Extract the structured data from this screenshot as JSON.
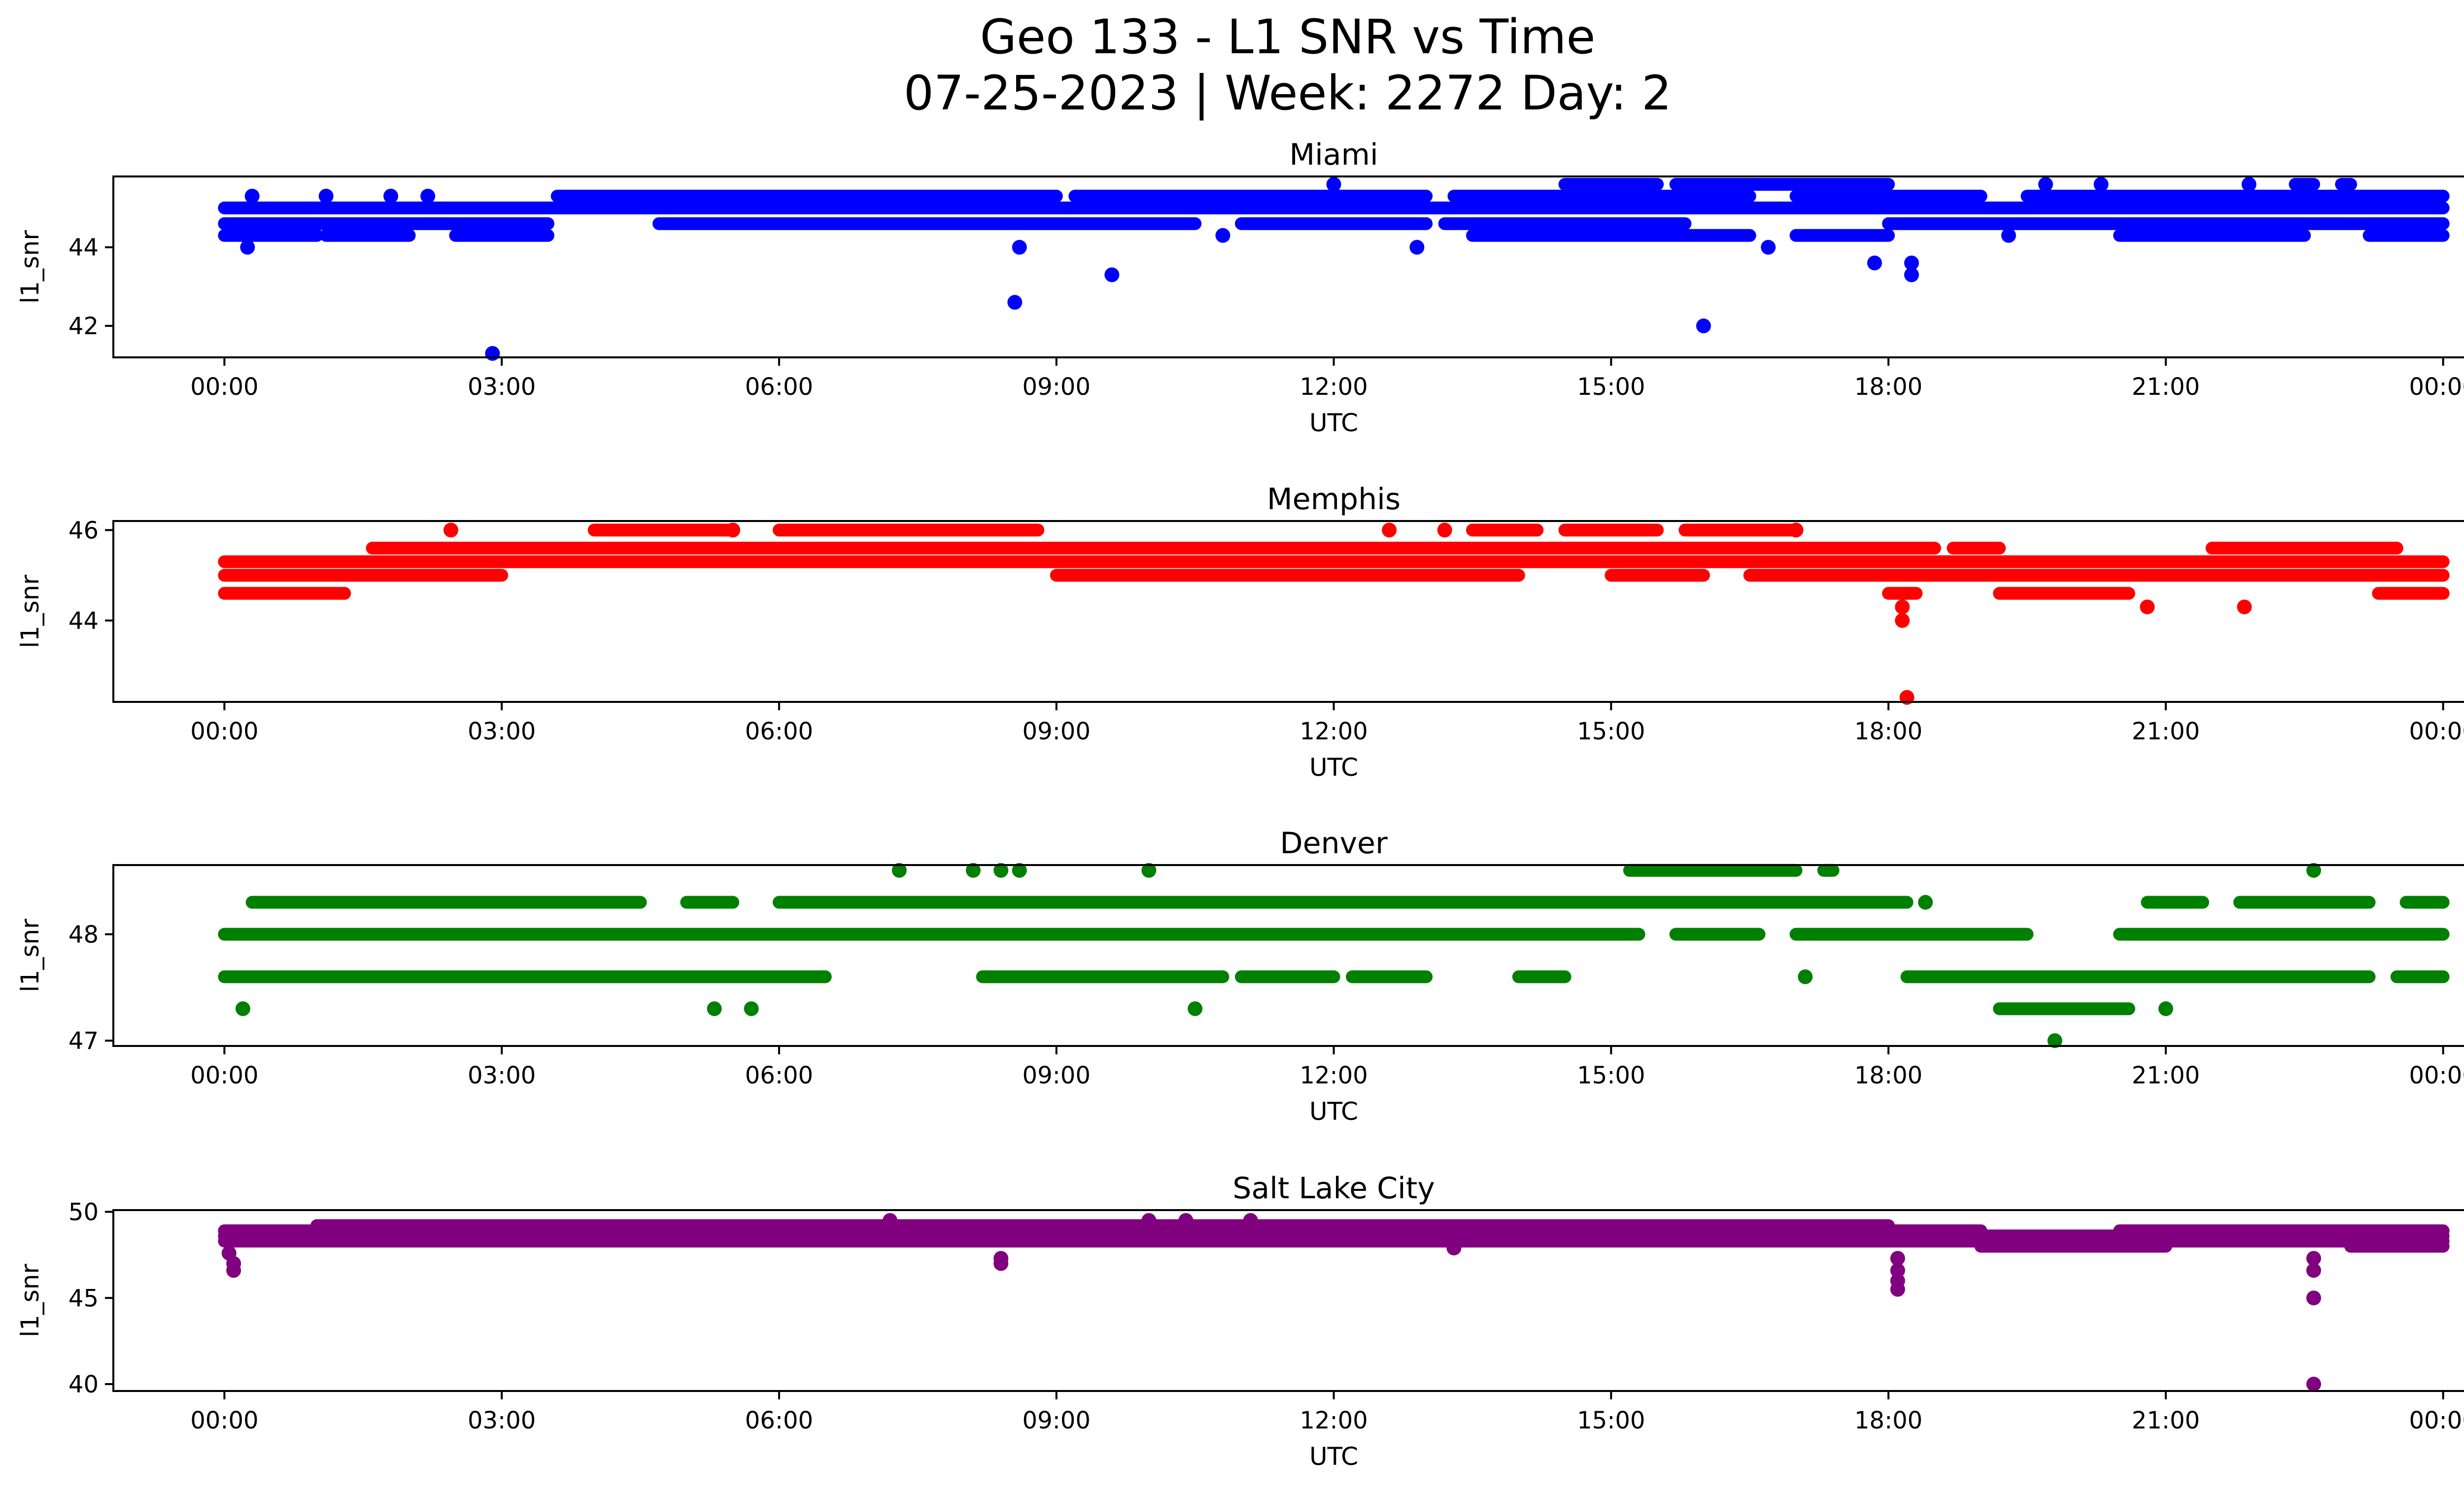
{
  "figure": {
    "title_line1": "Geo 133 - L1 SNR vs Time",
    "title_line2": "07-25-2023 | Week: 2272 Day: 2"
  },
  "chart_data": [
    {
      "type": "scatter",
      "title": "Miami",
      "xlabel": "UTC",
      "ylabel": "l1_snr",
      "color": "#0000ff",
      "xlim": [
        "00:00",
        "24:00"
      ],
      "xticks": [
        "00:00",
        "03:00",
        "06:00",
        "09:00",
        "12:00",
        "15:00",
        "18:00",
        "21:00",
        "00:00"
      ],
      "ylim": [
        41.2,
        45.8
      ],
      "yticks": [
        42,
        44
      ],
      "bands": [
        {
          "y": 44.3,
          "segments": [
            [
              0.0,
              1.0
            ],
            [
              1.1,
              2.0
            ],
            [
              2.5,
              3.5
            ],
            [
              13.5,
              16.5
            ],
            [
              17.0,
              18.0
            ],
            [
              20.5,
              22.5
            ],
            [
              23.2,
              24.0
            ]
          ]
        },
        {
          "y": 44.6,
          "segments": [
            [
              0.0,
              3.5
            ],
            [
              4.7,
              10.5
            ],
            [
              11.0,
              13.0
            ],
            [
              13.2,
              15.8
            ],
            [
              18.0,
              24.0
            ]
          ]
        },
        {
          "y": 45.0,
          "segments": [
            [
              0.0,
              24.0
            ]
          ]
        },
        {
          "y": 45.3,
          "segments": [
            [
              3.6,
              9.0
            ],
            [
              9.2,
              13.0
            ],
            [
              13.3,
              16.5
            ],
            [
              17.0,
              19.0
            ],
            [
              19.5,
              24.0
            ]
          ]
        },
        {
          "y": 45.6,
          "segments": [
            [
              14.5,
              15.5
            ],
            [
              15.7,
              18.0
            ],
            [
              22.4,
              22.6
            ],
            [
              22.9,
              23.0
            ]
          ]
        }
      ],
      "points": [
        {
          "x": 0.25,
          "y": 44.0
        },
        {
          "x": 0.3,
          "y": 45.3
        },
        {
          "x": 1.1,
          "y": 45.3
        },
        {
          "x": 1.8,
          "y": 45.3
        },
        {
          "x": 2.2,
          "y": 45.3
        },
        {
          "x": 2.9,
          "y": 41.3
        },
        {
          "x": 8.55,
          "y": 42.6
        },
        {
          "x": 8.6,
          "y": 44.0
        },
        {
          "x": 9.6,
          "y": 43.3
        },
        {
          "x": 10.8,
          "y": 44.3
        },
        {
          "x": 12.0,
          "y": 45.6
        },
        {
          "x": 12.9,
          "y": 44.0
        },
        {
          "x": 16.0,
          "y": 42.0
        },
        {
          "x": 16.7,
          "y": 44.0
        },
        {
          "x": 17.85,
          "y": 43.6
        },
        {
          "x": 18.25,
          "y": 43.6
        },
        {
          "x": 18.25,
          "y": 43.3
        },
        {
          "x": 19.3,
          "y": 44.3
        },
        {
          "x": 19.7,
          "y": 45.6
        },
        {
          "x": 20.3,
          "y": 45.6
        },
        {
          "x": 21.9,
          "y": 45.6
        }
      ]
    },
    {
      "type": "scatter",
      "title": "Memphis",
      "xlabel": "UTC",
      "ylabel": "l1_snr",
      "color": "#ff0000",
      "xlim": [
        "00:00",
        "24:00"
      ],
      "xticks": [
        "00:00",
        "03:00",
        "06:00",
        "09:00",
        "12:00",
        "15:00",
        "18:00",
        "21:00",
        "00:00"
      ],
      "ylim": [
        42.2,
        46.2
      ],
      "yticks": [
        44,
        46
      ],
      "bands": [
        {
          "y": 44.6,
          "segments": [
            [
              0.0,
              1.3
            ],
            [
              18.0,
              18.3
            ],
            [
              19.2,
              20.6
            ],
            [
              23.3,
              24.0
            ]
          ]
        },
        {
          "y": 45.0,
          "segments": [
            [
              0.0,
              3.0
            ],
            [
              9.0,
              14.0
            ],
            [
              15.0,
              16.0
            ],
            [
              16.5,
              24.0
            ]
          ]
        },
        {
          "y": 45.3,
          "segments": [
            [
              0.0,
              24.0
            ]
          ]
        },
        {
          "y": 45.6,
          "segments": [
            [
              1.6,
              18.5
            ],
            [
              18.7,
              19.2
            ],
            [
              21.5,
              23.5
            ]
          ]
        },
        {
          "y": 46.0,
          "segments": [
            [
              4.0,
              5.5
            ],
            [
              6.0,
              8.8
            ],
            [
              13.5,
              14.2
            ],
            [
              14.5,
              15.5
            ],
            [
              15.8,
              17.0
            ]
          ]
        }
      ],
      "points": [
        {
          "x": 2.45,
          "y": 46.0
        },
        {
          "x": 5.5,
          "y": 46.0
        },
        {
          "x": 12.6,
          "y": 46.0
        },
        {
          "x": 13.2,
          "y": 46.0
        },
        {
          "x": 17.0,
          "y": 46.0
        },
        {
          "x": 18.15,
          "y": 44.3
        },
        {
          "x": 18.15,
          "y": 44.0
        },
        {
          "x": 18.2,
          "y": 42.3
        },
        {
          "x": 20.8,
          "y": 44.3
        },
        {
          "x": 21.85,
          "y": 44.3
        }
      ]
    },
    {
      "type": "scatter",
      "title": "Denver",
      "xlabel": "UTC",
      "ylabel": "l1_snr",
      "color": "#008000",
      "xlim": [
        "00:00",
        "24:00"
      ],
      "xticks": [
        "00:00",
        "03:00",
        "06:00",
        "09:00",
        "12:00",
        "15:00",
        "18:00",
        "21:00",
        "00:00"
      ],
      "ylim": [
        46.95,
        48.65
      ],
      "yticks": [
        47,
        48
      ],
      "bands": [
        {
          "y": 47.3,
          "segments": [
            [
              19.2,
              20.6
            ]
          ]
        },
        {
          "y": 47.6,
          "segments": [
            [
              0.0,
              6.5
            ],
            [
              8.2,
              10.8
            ],
            [
              11.0,
              12.0
            ],
            [
              12.2,
              13.0
            ],
            [
              14.0,
              14.5
            ],
            [
              18.2,
              23.2
            ],
            [
              23.5,
              24.0
            ]
          ]
        },
        {
          "y": 48.0,
          "segments": [
            [
              0.0,
              15.3
            ],
            [
              15.7,
              16.6
            ],
            [
              17.0,
              19.5
            ],
            [
              20.5,
              24.0
            ]
          ]
        },
        {
          "y": 48.3,
          "segments": [
            [
              0.3,
              4.5
            ],
            [
              5.0,
              5.5
            ],
            [
              6.0,
              18.2
            ],
            [
              20.8,
              21.4
            ],
            [
              21.8,
              23.2
            ],
            [
              23.6,
              24.0
            ]
          ]
        },
        {
          "y": 48.6,
          "segments": [
            [
              15.2,
              17.0
            ],
            [
              17.3,
              17.4
            ]
          ]
        }
      ],
      "points": [
        {
          "x": 0.2,
          "y": 47.3
        },
        {
          "x": 5.3,
          "y": 47.3
        },
        {
          "x": 5.7,
          "y": 47.3
        },
        {
          "x": 7.3,
          "y": 48.6
        },
        {
          "x": 8.1,
          "y": 48.6
        },
        {
          "x": 8.4,
          "y": 48.6
        },
        {
          "x": 8.6,
          "y": 48.6
        },
        {
          "x": 10.0,
          "y": 48.6
        },
        {
          "x": 10.5,
          "y": 47.3
        },
        {
          "x": 17.1,
          "y": 47.6
        },
        {
          "x": 18.4,
          "y": 48.3
        },
        {
          "x": 19.8,
          "y": 47.0
        },
        {
          "x": 21.0,
          "y": 47.3
        },
        {
          "x": 22.6,
          "y": 48.6
        }
      ]
    },
    {
      "type": "scatter",
      "title": "Salt Lake City",
      "xlabel": "UTC",
      "ylabel": "l1_snr",
      "color": "#800080",
      "xlim": [
        "00:00",
        "24:00"
      ],
      "xticks": [
        "00:00",
        "03:00",
        "06:00",
        "09:00",
        "12:00",
        "15:00",
        "18:00",
        "21:00",
        "00:00"
      ],
      "ylim": [
        39.6,
        50.1
      ],
      "yticks": [
        40,
        45,
        50
      ],
      "bands": [
        {
          "y": 48.0,
          "segments": [
            [
              19.0,
              21.0
            ],
            [
              23.0,
              24.0
            ]
          ]
        },
        {
          "y": 48.3,
          "segments": [
            [
              0.0,
              24.0
            ]
          ]
        },
        {
          "y": 48.6,
          "segments": [
            [
              0.0,
              24.0
            ]
          ]
        },
        {
          "y": 48.9,
          "segments": [
            [
              0.0,
              19.0
            ],
            [
              20.5,
              24.0
            ]
          ]
        },
        {
          "y": 49.2,
          "segments": [
            [
              1.0,
              18.0
            ]
          ]
        }
      ],
      "points": [
        {
          "x": 0.05,
          "y": 47.6
        },
        {
          "x": 0.1,
          "y": 47.0
        },
        {
          "x": 0.1,
          "y": 46.6
        },
        {
          "x": 7.2,
          "y": 49.5
        },
        {
          "x": 8.4,
          "y": 47.3
        },
        {
          "x": 8.4,
          "y": 47.0
        },
        {
          "x": 10.0,
          "y": 49.5
        },
        {
          "x": 10.4,
          "y": 49.5
        },
        {
          "x": 11.1,
          "y": 49.5
        },
        {
          "x": 13.3,
          "y": 47.9
        },
        {
          "x": 18.1,
          "y": 47.3
        },
        {
          "x": 18.1,
          "y": 46.6
        },
        {
          "x": 18.1,
          "y": 46.0
        },
        {
          "x": 18.1,
          "y": 45.5
        },
        {
          "x": 22.6,
          "y": 47.3
        },
        {
          "x": 22.6,
          "y": 46.6
        },
        {
          "x": 22.6,
          "y": 45.0
        },
        {
          "x": 22.6,
          "y": 40.0
        }
      ]
    }
  ]
}
